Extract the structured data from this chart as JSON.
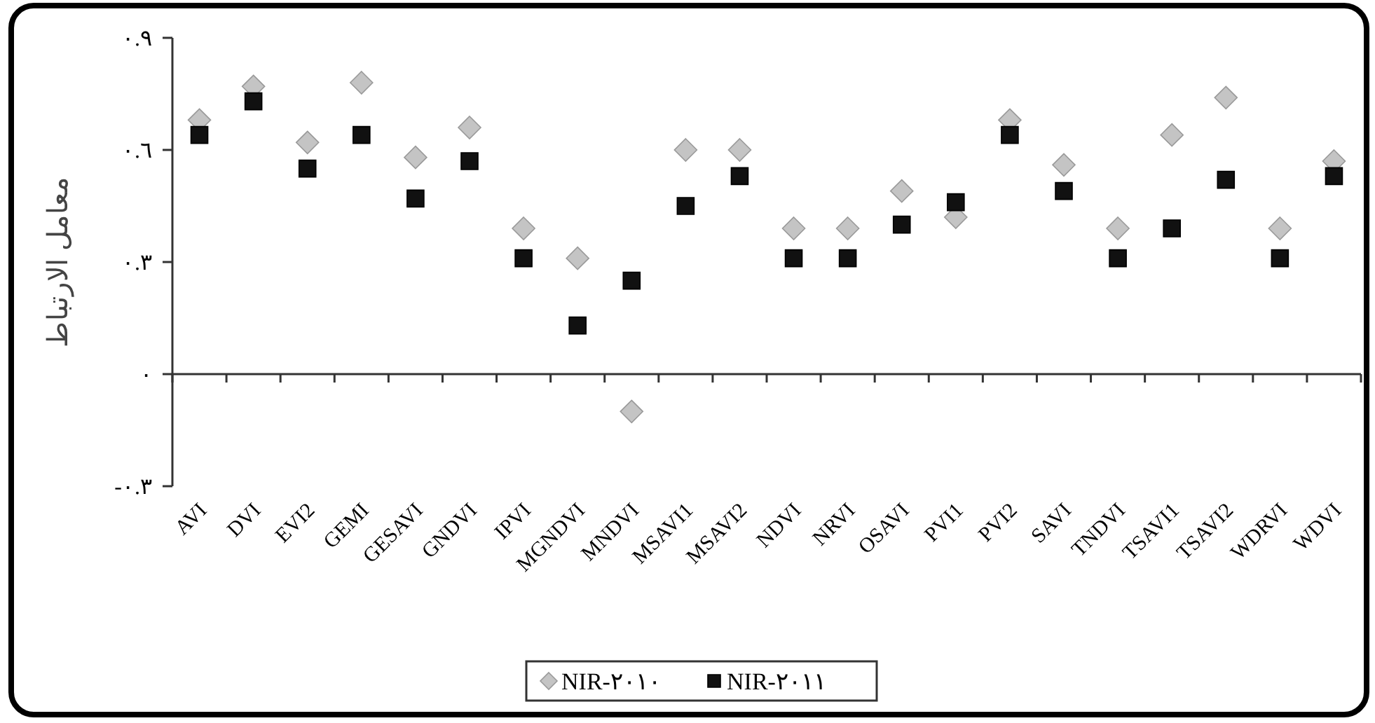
{
  "chart_data": {
    "type": "scatter",
    "ylabel": "معامل الارتباط",
    "categories": [
      "AVI",
      "DVI",
      "EVI2",
      "GEMI",
      "GESAVI",
      "GNDVI",
      "IPVI",
      "MGNDVI",
      "MNDVI",
      "MSAVI1",
      "MSAVI2",
      "NDVI",
      "NRVI",
      "OSAVI",
      "PVI1",
      "PVI2",
      "SAVI",
      "TNDVI",
      "TSAVI1",
      "TSAVI2",
      "WDRVI",
      "WDVI"
    ],
    "series": [
      {
        "name": "NIR-٢٠١٠",
        "color": "#c4c4c4",
        "marker": "diamond",
        "values": [
          0.68,
          0.77,
          0.62,
          0.78,
          0.58,
          0.66,
          0.39,
          0.31,
          -0.1,
          0.6,
          0.6,
          0.39,
          0.39,
          0.49,
          0.42,
          0.68,
          0.56,
          0.39,
          0.64,
          0.74,
          0.39,
          0.57
        ]
      },
      {
        "name": "NIR-٢٠١١",
        "color": "#111111",
        "marker": "square",
        "values": [
          0.64,
          0.73,
          0.55,
          0.64,
          0.47,
          0.57,
          0.31,
          0.13,
          0.25,
          0.45,
          0.53,
          0.31,
          0.31,
          0.4,
          0.46,
          0.64,
          0.49,
          0.31,
          0.39,
          0.52,
          0.31,
          0.53
        ]
      }
    ],
    "ylim": [
      -0.3,
      0.9
    ],
    "yticks": [
      {
        "value": -0.3,
        "label": "-٠.٣"
      },
      {
        "value": 0,
        "label": "٠"
      },
      {
        "value": 0.3,
        "label": "٠.٣"
      },
      {
        "value": 0.6,
        "label": "٠.٦"
      },
      {
        "value": 0.9,
        "label": "٠.٩"
      }
    ],
    "legend": "bottom"
  }
}
